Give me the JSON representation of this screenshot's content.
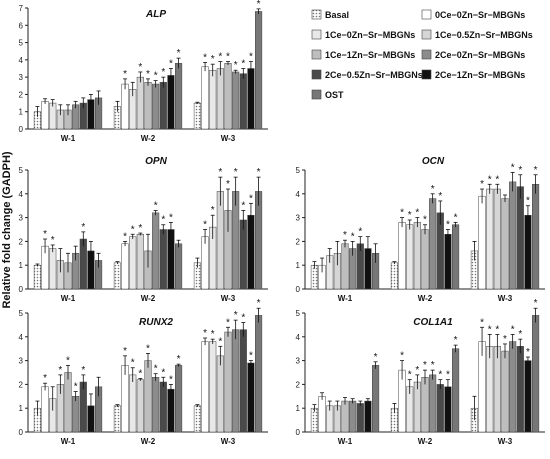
{
  "figure": {
    "ylabel": "Relative fold  change (GADPH)"
  },
  "legend": [
    {
      "label": "Basal",
      "color": "#d8d8d8",
      "pattern": "dots"
    },
    {
      "label": "0Ce−0Zn−Sr−MBGNs",
      "color": "#ffffff"
    },
    {
      "label": "1Ce−0Zn−Sr−MBGNs",
      "color": "#e8e8e8"
    },
    {
      "label": "1Ce−0.5Zn−Sr−MBGNs",
      "color": "#d6d6d6"
    },
    {
      "label": "1Ce−1Zn−Sr−MBGNs",
      "color": "#bebebe"
    },
    {
      "label": "2Ce−0Zn−Sr−MBGNs",
      "color": "#8c8c8c"
    },
    {
      "label": "2Ce−0.5Zn−Sr−MBGNs",
      "color": "#4a4a4a"
    },
    {
      "label": "2Ce−1Zn−Sr−MBGNs",
      "color": "#111111"
    },
    {
      "label": "OST",
      "color": "#777777"
    }
  ],
  "chart_data": [
    {
      "type": "bar",
      "title": "ALP",
      "categories": [
        "W-1",
        "W-2",
        "W-3"
      ],
      "ylim": [
        0,
        7
      ],
      "yticks": [
        0,
        1,
        2,
        3,
        4,
        5,
        6,
        7
      ],
      "series": [
        {
          "name": "Basal",
          "values": [
            1.0,
            1.3,
            1.5
          ],
          "errors": [
            0.3,
            0.3,
            0.05
          ],
          "star": [
            false,
            false,
            false
          ]
        },
        {
          "name": "0Ce−0Zn−Sr−MBGNs",
          "values": [
            1.6,
            2.6,
            3.6
          ],
          "errors": [
            0.15,
            0.3,
            0.25
          ],
          "star": [
            false,
            true,
            true
          ]
        },
        {
          "name": "1Ce−0Zn−Sr−MBGNs",
          "values": [
            1.5,
            2.3,
            3.4
          ],
          "errors": [
            0.2,
            0.4,
            0.35
          ],
          "star": [
            false,
            false,
            true
          ]
        },
        {
          "name": "1Ce−0.5Zn−Sr−MBGNs",
          "values": [
            1.1,
            3.0,
            3.5
          ],
          "errors": [
            0.3,
            0.3,
            0.4
          ],
          "star": [
            false,
            true,
            true
          ]
        },
        {
          "name": "1Ce−1Zn−Sr−MBGNs",
          "values": [
            1.1,
            2.7,
            3.8
          ],
          "errors": [
            0.3,
            0.2,
            0.1
          ],
          "star": [
            false,
            true,
            true
          ]
        },
        {
          "name": "2Ce−0Zn−Sr−MBGNs",
          "values": [
            1.4,
            2.6,
            3.3
          ],
          "errors": [
            0.2,
            0.2,
            0.1
          ],
          "star": [
            false,
            true,
            true
          ]
        },
        {
          "name": "2Ce−0.5Zn−Sr−MBGNs",
          "values": [
            1.5,
            2.7,
            3.2
          ],
          "errors": [
            0.3,
            0.3,
            0.3
          ],
          "star": [
            false,
            true,
            true
          ]
        },
        {
          "name": "2Ce−1Zn−Sr−MBGNs",
          "values": [
            1.7,
            3.1,
            3.5
          ],
          "errors": [
            0.3,
            0.4,
            0.4
          ],
          "star": [
            false,
            true,
            true
          ]
        },
        {
          "name": "OST",
          "values": [
            1.8,
            3.8,
            6.8
          ],
          "errors": [
            0.4,
            0.3,
            0.15
          ],
          "star": [
            false,
            true,
            true
          ]
        }
      ]
    },
    {
      "type": "bar",
      "title": "OPN",
      "categories": [
        "W-1",
        "W-2",
        "W-3"
      ],
      "ylim": [
        0,
        5
      ],
      "yticks": [
        0,
        1,
        2,
        3,
        4,
        5
      ],
      "series": [
        {
          "name": "Basal",
          "values": [
            1.0,
            1.1,
            1.1
          ],
          "errors": [
            0.05,
            0.05,
            0.2
          ],
          "star": [
            false,
            false,
            false
          ]
        },
        {
          "name": "0Ce−0Zn−Sr−MBGNs",
          "values": [
            1.8,
            1.9,
            2.2
          ],
          "errors": [
            0.3,
            0.1,
            0.3
          ],
          "star": [
            true,
            true,
            true
          ]
        },
        {
          "name": "1Ce−0Zn−Sr−MBGNs",
          "values": [
            1.7,
            2.2,
            2.6
          ],
          "errors": [
            0.15,
            0.1,
            0.5
          ],
          "star": [
            true,
            true,
            true
          ]
        },
        {
          "name": "1Ce−0.5Zn−Sr−MBGNs",
          "values": [
            1.2,
            2.3,
            4.1
          ],
          "errors": [
            0.5,
            0.05,
            0.6
          ],
          "star": [
            false,
            true,
            true
          ]
        },
        {
          "name": "1Ce−1Zn−Sr−MBGNs",
          "values": [
            1.1,
            1.6,
            3.3
          ],
          "errors": [
            0.4,
            0.7,
            0.9
          ],
          "star": [
            false,
            false,
            true
          ]
        },
        {
          "name": "2Ce−0Zn−Sr−MBGNs",
          "values": [
            1.5,
            3.2,
            4.1
          ],
          "errors": [
            0.3,
            0.1,
            0.6
          ],
          "star": [
            false,
            true,
            true
          ]
        },
        {
          "name": "2Ce−0.5Zn−Sr−MBGNs",
          "values": [
            2.1,
            2.5,
            2.9
          ],
          "errors": [
            0.3,
            0.2,
            0.4
          ],
          "star": [
            true,
            true,
            true
          ]
        },
        {
          "name": "2Ce−1Zn−Sr−MBGNs",
          "values": [
            1.6,
            2.5,
            3.1
          ],
          "errors": [
            0.4,
            0.3,
            0.5
          ],
          "star": [
            false,
            true,
            true
          ]
        },
        {
          "name": "OST",
          "values": [
            1.2,
            1.9,
            4.1
          ],
          "errors": [
            0.3,
            0.15,
            0.6
          ],
          "star": [
            false,
            false,
            true
          ]
        }
      ]
    },
    {
      "type": "bar",
      "title": "OCN",
      "categories": [
        "W-1",
        "W-2",
        "W-3"
      ],
      "ylim": [
        0,
        5
      ],
      "yticks": [
        0,
        1,
        2,
        3,
        4,
        5
      ],
      "series": [
        {
          "name": "Basal",
          "values": [
            1.0,
            1.1,
            1.6
          ],
          "errors": [
            0.15,
            0.05,
            0.4
          ],
          "star": [
            false,
            false,
            false
          ]
        },
        {
          "name": "0Ce−0Zn−Sr−MBGNs",
          "values": [
            1.0,
            2.8,
            3.9
          ],
          "errors": [
            0.3,
            0.2,
            0.3
          ],
          "star": [
            false,
            true,
            true
          ]
        },
        {
          "name": "1Ce−0Zn−Sr−MBGNs",
          "values": [
            1.4,
            2.7,
            4.2
          ],
          "errors": [
            0.3,
            0.2,
            0.2
          ],
          "star": [
            false,
            true,
            true
          ]
        },
        {
          "name": "1Ce−0.5Zn−Sr−MBGNs",
          "values": [
            1.5,
            2.8,
            4.2
          ],
          "errors": [
            0.5,
            0.2,
            0.2
          ],
          "star": [
            false,
            true,
            true
          ]
        },
        {
          "name": "1Ce−1Zn−Sr−MBGNs",
          "values": [
            1.9,
            2.5,
            3.8
          ],
          "errors": [
            0.15,
            0.2,
            0.15
          ],
          "star": [
            true,
            true,
            false
          ]
        },
        {
          "name": "2Ce−0Zn−Sr−MBGNs",
          "values": [
            1.7,
            3.8,
            4.5
          ],
          "errors": [
            0.3,
            0.2,
            0.4
          ],
          "star": [
            true,
            true,
            true
          ]
        },
        {
          "name": "2Ce−0.5Zn−Sr−MBGNs",
          "values": [
            1.9,
            3.2,
            4.3
          ],
          "errors": [
            0.3,
            0.5,
            0.5
          ],
          "star": [
            true,
            true,
            true
          ]
        },
        {
          "name": "2Ce−1Zn−Sr−MBGNs",
          "values": [
            1.7,
            2.3,
            3.1
          ],
          "errors": [
            0.5,
            0.2,
            0.4
          ],
          "star": [
            false,
            true,
            true
          ]
        },
        {
          "name": "OST",
          "values": [
            1.5,
            2.7,
            4.4
          ],
          "errors": [
            0.4,
            0.1,
            0.4
          ],
          "star": [
            false,
            true,
            true
          ]
        }
      ]
    },
    {
      "type": "bar",
      "title": "RUNX2",
      "categories": [
        "W-1",
        "W-2",
        "W-3"
      ],
      "ylim": [
        0,
        5
      ],
      "yticks": [
        0,
        1,
        2,
        3,
        4,
        5
      ],
      "series": [
        {
          "name": "Basal",
          "values": [
            1.0,
            1.1,
            1.1
          ],
          "errors": [
            0.3,
            0.05,
            0.05
          ],
          "star": [
            false,
            false,
            false
          ]
        },
        {
          "name": "0Ce−0Zn−Sr−MBGNs",
          "values": [
            1.9,
            2.8,
            3.8
          ],
          "errors": [
            0.15,
            0.4,
            0.15
          ],
          "star": [
            true,
            true,
            true
          ]
        },
        {
          "name": "1Ce−0Zn−Sr−MBGNs",
          "values": [
            1.4,
            2.4,
            3.8
          ],
          "errors": [
            0.5,
            0.3,
            0.1
          ],
          "star": [
            false,
            true,
            true
          ]
        },
        {
          "name": "1Ce−0.5Zn−Sr−MBGNs",
          "values": [
            2.0,
            2.2,
            3.2
          ],
          "errors": [
            0.4,
            0.05,
            0.4
          ],
          "star": [
            true,
            true,
            true
          ]
        },
        {
          "name": "1Ce−1Zn−Sr−MBGNs",
          "values": [
            2.5,
            3.0,
            4.2
          ],
          "errors": [
            0.3,
            0.3,
            0.2
          ],
          "star": [
            true,
            true,
            true
          ]
        },
        {
          "name": "2Ce−0Zn−Sr−MBGNs",
          "values": [
            1.5,
            2.3,
            4.3
          ],
          "errors": [
            0.2,
            0.15,
            0.4
          ],
          "star": [
            true,
            true,
            true
          ]
        },
        {
          "name": "2Ce−0.5Zn−Sr−MBGNs",
          "values": [
            2.1,
            2.1,
            4.3
          ],
          "errors": [
            0.3,
            0.2,
            0.3
          ],
          "star": [
            true,
            true,
            true
          ]
        },
        {
          "name": "2Ce−1Zn−Sr−MBGNs",
          "values": [
            1.1,
            1.8,
            2.9
          ],
          "errors": [
            0.5,
            0.2,
            0.1
          ],
          "star": [
            false,
            true,
            true
          ]
        },
        {
          "name": "OST",
          "values": [
            1.9,
            2.8,
            4.9
          ],
          "errors": [
            0.4,
            0.05,
            0.3
          ],
          "star": [
            false,
            true,
            true
          ]
        }
      ]
    },
    {
      "type": "bar",
      "title": "COL1A1",
      "categories": [
        "W-1",
        "W-2",
        "W-3"
      ],
      "ylim": [
        0,
        5
      ],
      "yticks": [
        0,
        1,
        2,
        3,
        4,
        5
      ],
      "series": [
        {
          "name": "Basal",
          "values": [
            1.0,
            1.0,
            1.0
          ],
          "errors": [
            0.15,
            0.2,
            0.5
          ],
          "star": [
            false,
            false,
            false
          ]
        },
        {
          "name": "0Ce−0Zn−Sr−MBGNs",
          "values": [
            1.5,
            2.6,
            3.8
          ],
          "errors": [
            0.15,
            0.4,
            0.6
          ],
          "star": [
            false,
            true,
            true
          ]
        },
        {
          "name": "1Ce−0Zn−Sr−MBGNs",
          "values": [
            1.1,
            1.9,
            3.6
          ],
          "errors": [
            0.2,
            0.3,
            0.5
          ],
          "star": [
            false,
            true,
            true
          ]
        },
        {
          "name": "1Ce−0.5Zn−Sr−MBGNs",
          "values": [
            1.1,
            2.1,
            3.6
          ],
          "errors": [
            0.2,
            0.3,
            0.5
          ],
          "star": [
            false,
            true,
            true
          ]
        },
        {
          "name": "1Ce−1Zn−Sr−MBGNs",
          "values": [
            1.3,
            2.3,
            3.4
          ],
          "errors": [
            0.15,
            0.3,
            0.3
          ],
          "star": [
            false,
            true,
            true
          ]
        },
        {
          "name": "2Ce−0Zn−Sr−MBGNs",
          "values": [
            1.3,
            2.4,
            3.8
          ],
          "errors": [
            0.1,
            0.2,
            0.3
          ],
          "star": [
            false,
            true,
            true
          ]
        },
        {
          "name": "2Ce−0.5Zn−Sr−MBGNs",
          "values": [
            1.2,
            2.0,
            3.6
          ],
          "errors": [
            0.1,
            0.2,
            0.3
          ],
          "star": [
            false,
            true,
            true
          ]
        },
        {
          "name": "2Ce−1Zn−Sr−MBGNs",
          "values": [
            1.3,
            1.9,
            3.0
          ],
          "errors": [
            0.1,
            0.3,
            0.15
          ],
          "star": [
            false,
            true,
            true
          ]
        },
        {
          "name": "OST",
          "values": [
            2.8,
            3.5,
            4.9
          ],
          "errors": [
            0.15,
            0.15,
            0.3
          ],
          "star": [
            true,
            true,
            true
          ]
        }
      ]
    }
  ]
}
